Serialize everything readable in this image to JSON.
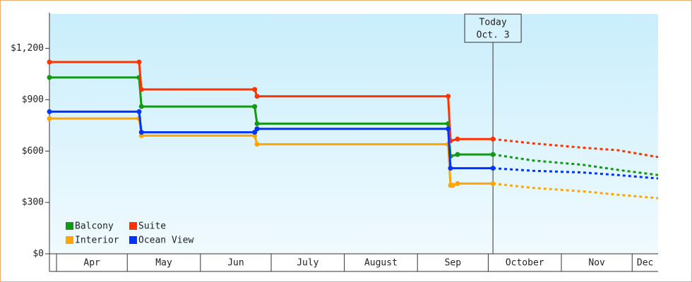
{
  "chart_data": {
    "type": "line",
    "xlim": [
      "03-29",
      "12-12"
    ],
    "xticks": [
      {
        "value": "04-01",
        "label": "Apr"
      },
      {
        "value": "05-01",
        "label": "May"
      },
      {
        "value": "06-01",
        "label": "Jun"
      },
      {
        "value": "07-01",
        "label": "July"
      },
      {
        "value": "08-01",
        "label": "August"
      },
      {
        "value": "09-01",
        "label": "Sep"
      },
      {
        "value": "10-01",
        "label": "October"
      },
      {
        "value": "11-01",
        "label": "Nov"
      },
      {
        "value": "12-01",
        "label": "Dec"
      }
    ],
    "ylim": [
      0,
      1400
    ],
    "yticks": [
      {
        "value": 0,
        "label": "$0"
      },
      {
        "value": 300,
        "label": "$300"
      },
      {
        "value": 600,
        "label": "$600"
      },
      {
        "value": 900,
        "label": "$900"
      },
      {
        "value": 1200,
        "label": "$1,200"
      }
    ],
    "legend": "lower left",
    "annotation": {
      "x": "10-03",
      "lines": [
        "Today",
        "Oct. 3"
      ]
    },
    "series": [
      {
        "name": "Balcony",
        "color": "#119911",
        "x": [
          "03-29",
          "05-06",
          "05-07",
          "06-24",
          "06-25",
          "09-14",
          "09-15",
          "09-18",
          "10-03"
        ],
        "values": [
          1030,
          1030,
          860,
          860,
          760,
          760,
          570,
          580,
          580
        ],
        "forecast_x": [
          "10-03",
          "10-20",
          "11-10",
          "11-25",
          "12-12"
        ],
        "forecast": [
          580,
          545,
          520,
          490,
          460
        ]
      },
      {
        "name": "Suite",
        "color": "#ff3300",
        "x": [
          "03-29",
          "05-06",
          "05-07",
          "06-24",
          "06-25",
          "09-14",
          "09-15",
          "09-18",
          "10-03"
        ],
        "values": [
          1120,
          1120,
          960,
          960,
          920,
          920,
          660,
          670,
          670
        ],
        "forecast_x": [
          "10-03",
          "10-20",
          "11-10",
          "11-25",
          "12-12"
        ],
        "forecast": [
          670,
          645,
          620,
          605,
          565
        ]
      },
      {
        "name": "Interior",
        "color": "#ffa500",
        "x": [
          "03-29",
          "05-06",
          "05-07",
          "06-24",
          "06-25",
          "09-14",
          "09-15",
          "09-16",
          "09-18",
          "10-03"
        ],
        "values": [
          790,
          790,
          690,
          690,
          640,
          640,
          400,
          400,
          410,
          410
        ],
        "forecast_x": [
          "10-03",
          "10-20",
          "11-10",
          "11-25",
          "12-12"
        ],
        "forecast": [
          410,
          385,
          365,
          345,
          325
        ]
      },
      {
        "name": "Ocean View",
        "color": "#0033ff",
        "x": [
          "03-29",
          "05-06",
          "05-07",
          "06-24",
          "06-25",
          "09-14",
          "09-15",
          "10-03"
        ],
        "values": [
          830,
          830,
          710,
          710,
          730,
          730,
          500,
          500
        ],
        "forecast_x": [
          "10-03",
          "10-20",
          "11-10",
          "11-25",
          "12-12"
        ],
        "forecast": [
          500,
          485,
          475,
          460,
          440
        ]
      }
    ]
  }
}
